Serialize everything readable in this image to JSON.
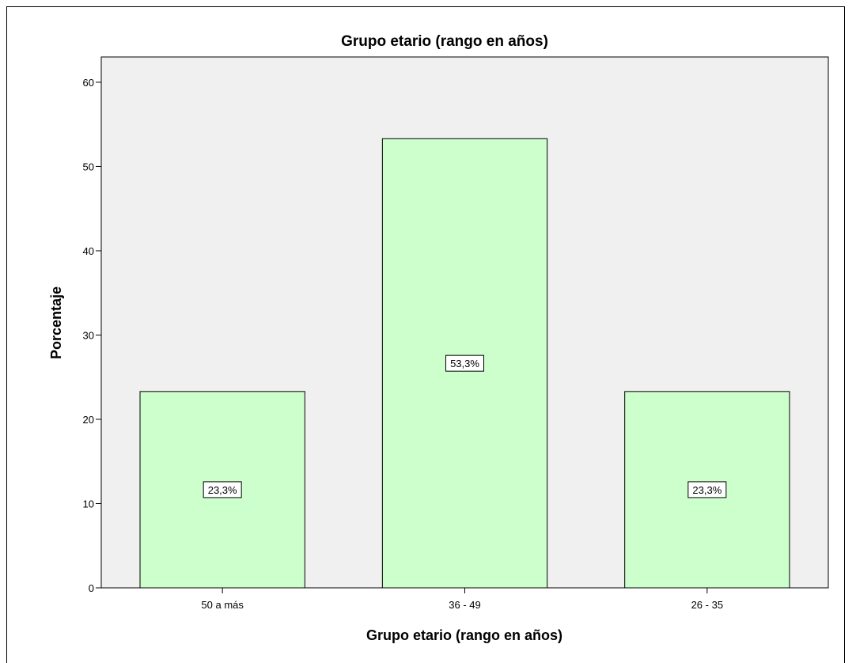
{
  "chart_data": {
    "type": "bar",
    "title": "Grupo etario (rango en años)",
    "xlabel": "Grupo etario (rango en años)",
    "ylabel": "Porcentaje",
    "categories": [
      "50 a más",
      "36 - 49",
      "26 - 35"
    ],
    "values": [
      23.3,
      53.3,
      23.3
    ],
    "data_labels": [
      "23,3%",
      "53,3%",
      "23,3%"
    ],
    "ylim": [
      0,
      63
    ],
    "yticks": [
      0,
      10,
      20,
      30,
      40,
      50,
      60
    ],
    "grid": false,
    "legend": "none",
    "colors": {
      "bar_fill": "#ccffcc",
      "plot_background": "#f0f0f0"
    }
  }
}
